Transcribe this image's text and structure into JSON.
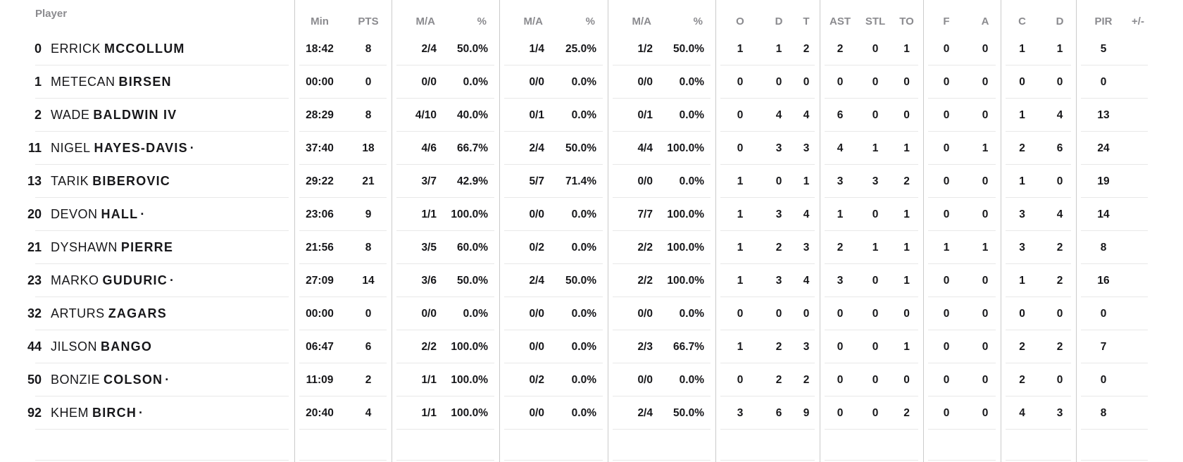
{
  "colors": {
    "header_text": "#8B8B8F",
    "body_text": "#17171A",
    "column_divider": "#CBCBCB",
    "row_divider": "#E8E8E8",
    "background": "#FFFFFF"
  },
  "box_score": {
    "starter_mark": "·",
    "columns": {
      "player": "Player",
      "min": "Min",
      "pts": "PTS",
      "made_attempted": "M/A",
      "percent": "%",
      "o": "O",
      "d": "D",
      "t": "T",
      "ast": "AST",
      "stl": "STL",
      "to": "TO",
      "col_f": "F",
      "col_a": "A",
      "col_c": "C",
      "col_d": "D",
      "pir": "PIR",
      "plus_minus": "+/-"
    },
    "players": [
      {
        "number": "0",
        "first_name": "ERRICK",
        "last_name": "MCCOLLUM",
        "starter": false,
        "min": "18:42",
        "pts": "8",
        "fg2_ma": "2/4",
        "fg2_pct": "50.0%",
        "fg3_ma": "1/4",
        "fg3_pct": "25.0%",
        "ft_ma": "1/2",
        "ft_pct": "50.0%",
        "reb_o": "1",
        "reb_d": "1",
        "reb_t": "2",
        "ast": "2",
        "stl": "0",
        "to": "1",
        "f": "0",
        "a": "0",
        "c": "1",
        "d": "1",
        "pir": "5",
        "plus_minus": ""
      },
      {
        "number": "1",
        "first_name": "METECAN",
        "last_name": "BIRSEN",
        "starter": false,
        "min": "00:00",
        "pts": "0",
        "fg2_ma": "0/0",
        "fg2_pct": "0.0%",
        "fg3_ma": "0/0",
        "fg3_pct": "0.0%",
        "ft_ma": "0/0",
        "ft_pct": "0.0%",
        "reb_o": "0",
        "reb_d": "0",
        "reb_t": "0",
        "ast": "0",
        "stl": "0",
        "to": "0",
        "f": "0",
        "a": "0",
        "c": "0",
        "d": "0",
        "pir": "0",
        "plus_minus": ""
      },
      {
        "number": "2",
        "first_name": "WADE",
        "last_name": "BALDWIN IV",
        "starter": false,
        "min": "28:29",
        "pts": "8",
        "fg2_ma": "4/10",
        "fg2_pct": "40.0%",
        "fg3_ma": "0/1",
        "fg3_pct": "0.0%",
        "ft_ma": "0/1",
        "ft_pct": "0.0%",
        "reb_o": "0",
        "reb_d": "4",
        "reb_t": "4",
        "ast": "6",
        "stl": "0",
        "to": "0",
        "f": "0",
        "a": "0",
        "c": "1",
        "d": "4",
        "pir": "13",
        "plus_minus": ""
      },
      {
        "number": "11",
        "first_name": "NIGEL",
        "last_name": "HAYES-DAVIS",
        "starter": true,
        "min": "37:40",
        "pts": "18",
        "fg2_ma": "4/6",
        "fg2_pct": "66.7%",
        "fg3_ma": "2/4",
        "fg3_pct": "50.0%",
        "ft_ma": "4/4",
        "ft_pct": "100.0%",
        "reb_o": "0",
        "reb_d": "3",
        "reb_t": "3",
        "ast": "4",
        "stl": "1",
        "to": "1",
        "f": "0",
        "a": "1",
        "c": "2",
        "d": "6",
        "pir": "24",
        "plus_minus": ""
      },
      {
        "number": "13",
        "first_name": "TARIK",
        "last_name": "BIBEROVIC",
        "starter": false,
        "min": "29:22",
        "pts": "21",
        "fg2_ma": "3/7",
        "fg2_pct": "42.9%",
        "fg3_ma": "5/7",
        "fg3_pct": "71.4%",
        "ft_ma": "0/0",
        "ft_pct": "0.0%",
        "reb_o": "1",
        "reb_d": "0",
        "reb_t": "1",
        "ast": "3",
        "stl": "3",
        "to": "2",
        "f": "0",
        "a": "0",
        "c": "1",
        "d": "0",
        "pir": "19",
        "plus_minus": ""
      },
      {
        "number": "20",
        "first_name": "DEVON",
        "last_name": "HALL",
        "starter": true,
        "min": "23:06",
        "pts": "9",
        "fg2_ma": "1/1",
        "fg2_pct": "100.0%",
        "fg3_ma": "0/0",
        "fg3_pct": "0.0%",
        "ft_ma": "7/7",
        "ft_pct": "100.0%",
        "reb_o": "1",
        "reb_d": "3",
        "reb_t": "4",
        "ast": "1",
        "stl": "0",
        "to": "1",
        "f": "0",
        "a": "0",
        "c": "3",
        "d": "4",
        "pir": "14",
        "plus_minus": ""
      },
      {
        "number": "21",
        "first_name": "DYSHAWN",
        "last_name": "PIERRE",
        "starter": false,
        "min": "21:56",
        "pts": "8",
        "fg2_ma": "3/5",
        "fg2_pct": "60.0%",
        "fg3_ma": "0/2",
        "fg3_pct": "0.0%",
        "ft_ma": "2/2",
        "ft_pct": "100.0%",
        "reb_o": "1",
        "reb_d": "2",
        "reb_t": "3",
        "ast": "2",
        "stl": "1",
        "to": "1",
        "f": "1",
        "a": "1",
        "c": "3",
        "d": "2",
        "pir": "8",
        "plus_minus": ""
      },
      {
        "number": "23",
        "first_name": "MARKO",
        "last_name": "GUDURIC",
        "starter": true,
        "min": "27:09",
        "pts": "14",
        "fg2_ma": "3/6",
        "fg2_pct": "50.0%",
        "fg3_ma": "2/4",
        "fg3_pct": "50.0%",
        "ft_ma": "2/2",
        "ft_pct": "100.0%",
        "reb_o": "1",
        "reb_d": "3",
        "reb_t": "4",
        "ast": "3",
        "stl": "0",
        "to": "1",
        "f": "0",
        "a": "0",
        "c": "1",
        "d": "2",
        "pir": "16",
        "plus_minus": ""
      },
      {
        "number": "32",
        "first_name": "ARTURS",
        "last_name": "ZAGARS",
        "starter": false,
        "min": "00:00",
        "pts": "0",
        "fg2_ma": "0/0",
        "fg2_pct": "0.0%",
        "fg3_ma": "0/0",
        "fg3_pct": "0.0%",
        "ft_ma": "0/0",
        "ft_pct": "0.0%",
        "reb_o": "0",
        "reb_d": "0",
        "reb_t": "0",
        "ast": "0",
        "stl": "0",
        "to": "0",
        "f": "0",
        "a": "0",
        "c": "0",
        "d": "0",
        "pir": "0",
        "plus_minus": ""
      },
      {
        "number": "44",
        "first_name": "JILSON",
        "last_name": "BANGO",
        "starter": false,
        "min": "06:47",
        "pts": "6",
        "fg2_ma": "2/2",
        "fg2_pct": "100.0%",
        "fg3_ma": "0/0",
        "fg3_pct": "0.0%",
        "ft_ma": "2/3",
        "ft_pct": "66.7%",
        "reb_o": "1",
        "reb_d": "2",
        "reb_t": "3",
        "ast": "0",
        "stl": "0",
        "to": "1",
        "f": "0",
        "a": "0",
        "c": "2",
        "d": "2",
        "pir": "7",
        "plus_minus": ""
      },
      {
        "number": "50",
        "first_name": "BONZIE",
        "last_name": "COLSON",
        "starter": true,
        "min": "11:09",
        "pts": "2",
        "fg2_ma": "1/1",
        "fg2_pct": "100.0%",
        "fg3_ma": "0/2",
        "fg3_pct": "0.0%",
        "ft_ma": "0/0",
        "ft_pct": "0.0%",
        "reb_o": "0",
        "reb_d": "2",
        "reb_t": "2",
        "ast": "0",
        "stl": "0",
        "to": "0",
        "f": "0",
        "a": "0",
        "c": "2",
        "d": "0",
        "pir": "0",
        "plus_minus": ""
      },
      {
        "number": "92",
        "first_name": "KHEM",
        "last_name": "BIRCH",
        "starter": true,
        "min": "20:40",
        "pts": "4",
        "fg2_ma": "1/1",
        "fg2_pct": "100.0%",
        "fg3_ma": "0/0",
        "fg3_pct": "0.0%",
        "ft_ma": "2/4",
        "ft_pct": "50.0%",
        "reb_o": "3",
        "reb_d": "6",
        "reb_t": "9",
        "ast": "0",
        "stl": "0",
        "to": "2",
        "f": "0",
        "a": "0",
        "c": "4",
        "d": "3",
        "pir": "8",
        "plus_minus": ""
      }
    ]
  }
}
